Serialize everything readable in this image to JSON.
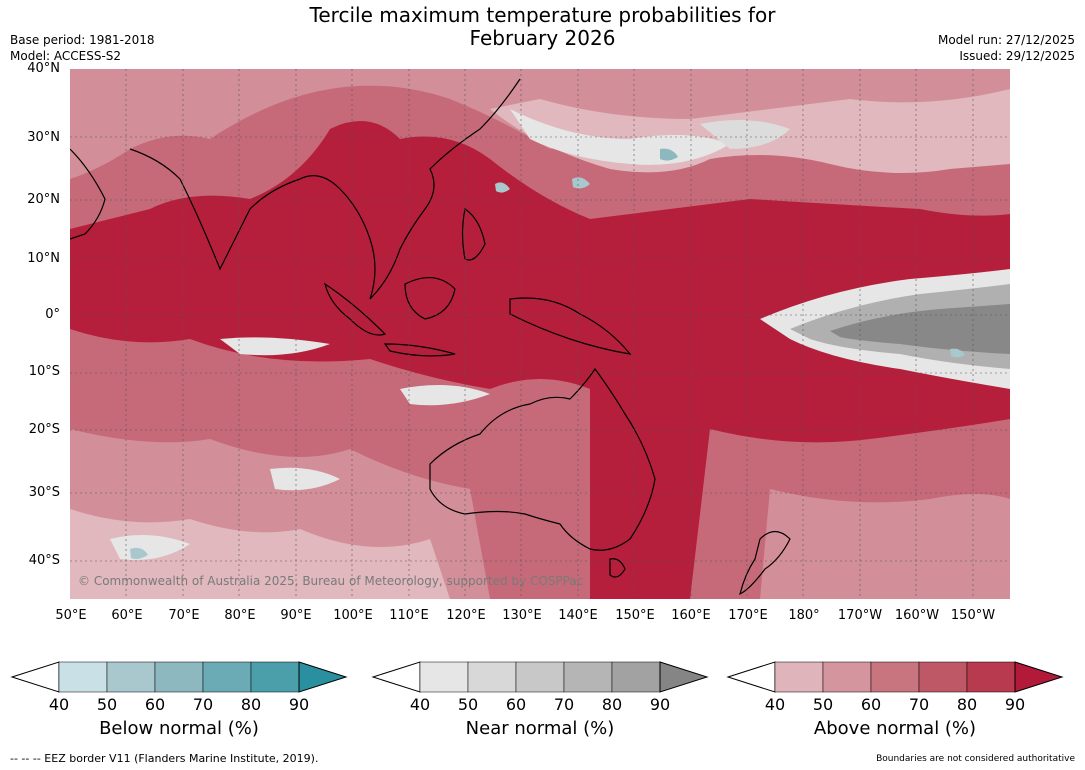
{
  "title": {
    "line1": "Tercile maximum temperature probabilities for",
    "line2": "February 2026"
  },
  "meta_left": {
    "base_period": "Base period: 1981-2018",
    "model": "Model: ACCESS-S2"
  },
  "meta_right": {
    "model_run": "Model run: 27/12/2025",
    "issued": "Issued: 29/12/2025"
  },
  "map": {
    "lat_labels": [
      "40°N",
      "30°N",
      "20°N",
      "10°N",
      "0°",
      "10°S",
      "20°S",
      "30°S",
      "40°S"
    ],
    "lon_labels": [
      "50°E",
      "60°E",
      "70°E",
      "80°E",
      "90°E",
      "100°E",
      "110°E",
      "120°E",
      "130°E",
      "140°E",
      "150°E",
      "160°E",
      "170°E",
      "180°",
      "170°W",
      "160°W",
      "150°W"
    ],
    "copyright": "© Commonwealth of Australia 2025, Bureau of Meteorology, supported by COSPPac"
  },
  "legends": [
    {
      "title": "Below normal (%)",
      "ticks": [
        "40",
        "50",
        "60",
        "70",
        "80",
        "90"
      ],
      "colors": [
        "#c9e1e6",
        "#a8c8cd",
        "#8db8c0",
        "#6aabb6",
        "#4a9fab",
        "#2a8f9e"
      ]
    },
    {
      "title": "Near normal (%)",
      "ticks": [
        "40",
        "50",
        "60",
        "70",
        "80",
        "90"
      ],
      "colors": [
        "#e6e6e6",
        "#d8d8d8",
        "#c8c8c8",
        "#b5b5b5",
        "#a2a2a2",
        "#858585"
      ]
    },
    {
      "title": "Above normal (%)",
      "ticks": [
        "40",
        "50",
        "60",
        "70",
        "80",
        "90"
      ],
      "colors": [
        "#e0b4bb",
        "#d4959e",
        "#c97580",
        "#bf5866",
        "#b73a4e",
        "#b31a3a"
      ]
    }
  ],
  "footer": {
    "left": "--  --  -- EEZ border V11 (Flanders Marine Institute, 2019).",
    "right": "Boundaries are not considered authoritative"
  }
}
